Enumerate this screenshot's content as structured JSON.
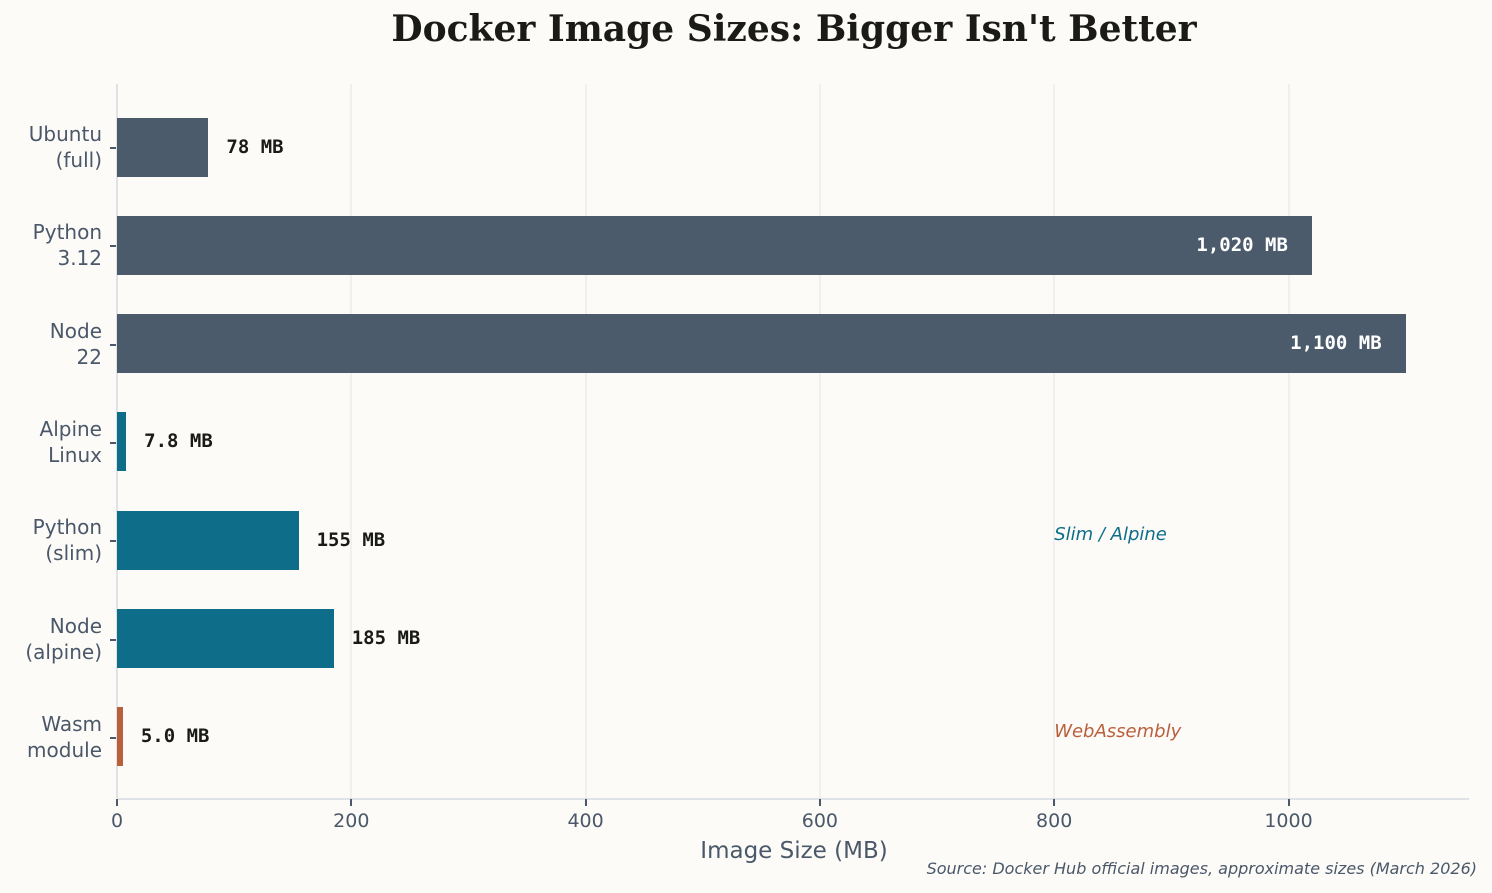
{
  "chart_data": {
    "type": "bar",
    "orientation": "horizontal",
    "title": "Docker Image Sizes: Bigger Isn't Better",
    "xlabel": "Image Size (MB)",
    "ylabel": "",
    "xlim": [
      0,
      1155
    ],
    "xticks": [
      "0",
      "200",
      "400",
      "600",
      "800",
      "1000"
    ],
    "grid": "vertical",
    "categories": [
      "Ubuntu\n(full)",
      "Python\n3.12",
      "Node\n22",
      "Alpine\nLinux",
      "Python\n(slim)",
      "Node\n(alpine)",
      "Wasm\nmodule"
    ],
    "values": [
      78,
      1020,
      1100,
      7.8,
      155,
      185,
      5.0
    ],
    "value_labels": [
      "78 MB",
      "1,020 MB",
      "1,100 MB",
      "7.8 MB",
      "155 MB",
      "185 MB",
      "5.0 MB"
    ],
    "groups": [
      "full",
      "full",
      "full",
      "slim",
      "slim",
      "slim",
      "wasm"
    ],
    "colors": {
      "full": "#4b5b6b",
      "slim": "#0e6e8a",
      "wasm": "#b95f3c"
    },
    "annotations": [
      {
        "text": "Slim / Alpine",
        "x": 800,
        "near_category": "Python\n(slim)",
        "color": "#0e6e8a"
      },
      {
        "text": "WebAssembly",
        "x": 800,
        "near_category": "Wasm\nmodule",
        "color": "#b95f3c"
      }
    ],
    "source": "Source: Docker Hub official images, approximate sizes (March 2026)"
  }
}
